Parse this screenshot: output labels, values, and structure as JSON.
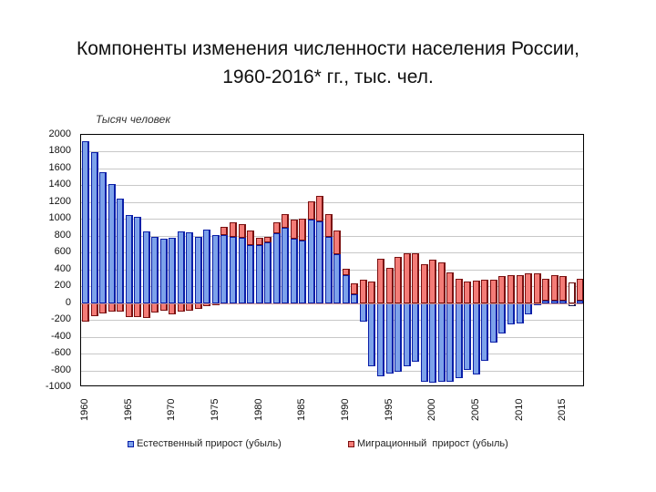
{
  "slide": {
    "title_line1": "Компоненты изменения численности населения России,",
    "title_line2": "1960-2016* гг., тыс. чел."
  },
  "chart": {
    "unit_label": "Тысяч человек",
    "legend": {
      "natural": "Естественный прирост (убыль)",
      "migration": "Миграционный  прирост (убыль)"
    },
    "colors": {
      "natural_fill": "#7da2ea",
      "natural_border": "#0a1fa8",
      "migration_fill": "#f47c77",
      "migration_border": "#7a1010"
    }
  },
  "chart_data": {
    "type": "bar",
    "stacked": true,
    "title": "Компоненты изменения численности населения России, 1960-2016* гг., тыс. чел.",
    "ylabel": "Тысяч человек",
    "xlabel": "",
    "ylim": [
      -1000,
      2000
    ],
    "yticks": [
      2000,
      1800,
      1600,
      1400,
      1200,
      1000,
      800,
      600,
      400,
      200,
      0,
      -200,
      -400,
      -600,
      -800,
      -1000
    ],
    "xtick_labels": [
      "1960",
      "1965",
      "1970",
      "1975",
      "1980",
      "1985",
      "1990",
      "1995",
      "2000",
      "2005",
      "2010",
      "2015"
    ],
    "grid": true,
    "legend_position": "bottom",
    "x": [
      1960,
      1961,
      1962,
      1963,
      1964,
      1965,
      1966,
      1967,
      1968,
      1969,
      1970,
      1971,
      1972,
      1973,
      1974,
      1975,
      1976,
      1977,
      1978,
      1979,
      1980,
      1981,
      1982,
      1983,
      1984,
      1985,
      1986,
      1987,
      1988,
      1989,
      1990,
      1991,
      1992,
      1993,
      1994,
      1995,
      1996,
      1997,
      1998,
      1999,
      2000,
      2001,
      2002,
      2003,
      2004,
      2005,
      2006,
      2007,
      2008,
      2009,
      2010,
      2011,
      2012,
      2013,
      2014,
      2015,
      2016,
      2017
    ],
    "series": [
      {
        "name": "Естественный прирост (убыль)",
        "values": [
          1920,
          1790,
          1560,
          1420,
          1240,
          1050,
          1020,
          850,
          790,
          760,
          780,
          850,
          840,
          790,
          870,
          810,
          810,
          790,
          780,
          690,
          690,
          720,
          830,
          900,
          760,
          740,
          990,
          970,
          790,
          580,
          330,
          100,
          -220,
          -750,
          -870,
          -840,
          -820,
          -750,
          -700,
          -930,
          -950,
          -940,
          -930,
          -890,
          -790,
          -850,
          -690,
          -470,
          -360,
          -250,
          -240,
          -130,
          -2,
          24,
          30,
          32,
          -40,
          null
        ],
        "hollow_flags_note": "2016 shown as hollow outline bar"
      },
      {
        "name": "Миграционный прирост (убыль)",
        "values": [
          -220,
          -150,
          -120,
          -100,
          -100,
          -170,
          -170,
          -180,
          -110,
          -90,
          -130,
          -100,
          -90,
          -70,
          -40,
          -10,
          100,
          170,
          160,
          170,
          90,
          70,
          130,
          160,
          230,
          260,
          220,
          300,
          270,
          280,
          80,
          130,
          280,
          260,
          530,
          420,
          550,
          590,
          590,
          460,
          520,
          480,
          360,
          290,
          260,
          270,
          280,
          280,
          320,
          330,
          330,
          350,
          350,
          270,
          300,
          290,
          250,
          262
        ]
      }
    ],
    "additional_visible_bars": [
      {
        "slot_after": 2017,
        "natural": 30,
        "migration": 260,
        "style": "filled"
      },
      {
        "slot_after": 2017,
        "natural": -60,
        "migration": 285,
        "style": "hollow"
      }
    ]
  }
}
